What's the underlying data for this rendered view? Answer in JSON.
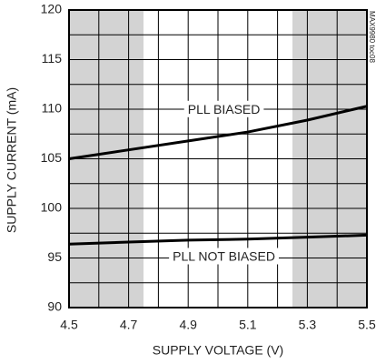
{
  "chart_data": {
    "type": "line",
    "x_label": "SUPPLY VOLTAGE (V)",
    "y_label": "SUPPLY CURRENT (mA)",
    "annotation": "MAX9980 toc08",
    "x": [
      4.5,
      4.7,
      4.9,
      5.1,
      5.3,
      5.5
    ],
    "series": [
      {
        "name": "PLL BIASED",
        "color": "#000000",
        "values": [
          105,
          105.9,
          106.8,
          107.7,
          108.9,
          110.3
        ]
      },
      {
        "name": "PLL NOT BIASED",
        "color": "#000000",
        "values": [
          96.4,
          96.6,
          96.8,
          96.9,
          97.1,
          97.3
        ]
      }
    ],
    "xlim": [
      4.5,
      5.5
    ],
    "ylim": [
      90,
      120
    ],
    "xticks": [
      4.5,
      4.7,
      4.9,
      5.1,
      5.3,
      5.5
    ],
    "yticks": [
      90,
      95,
      100,
      105,
      110,
      115,
      120
    ],
    "xgrid": [
      4.6,
      4.7,
      4.8,
      4.9,
      5.0,
      5.1,
      5.2,
      5.3,
      5.4
    ],
    "ygrid": [
      92.5,
      95,
      97.5,
      100,
      102.5,
      105,
      107.5,
      110,
      112.5,
      115,
      117.5
    ],
    "shaded": [
      [
        4.5,
        4.75
      ],
      [
        5.25,
        5.5
      ]
    ],
    "shade_color": "#d3d3d3"
  }
}
